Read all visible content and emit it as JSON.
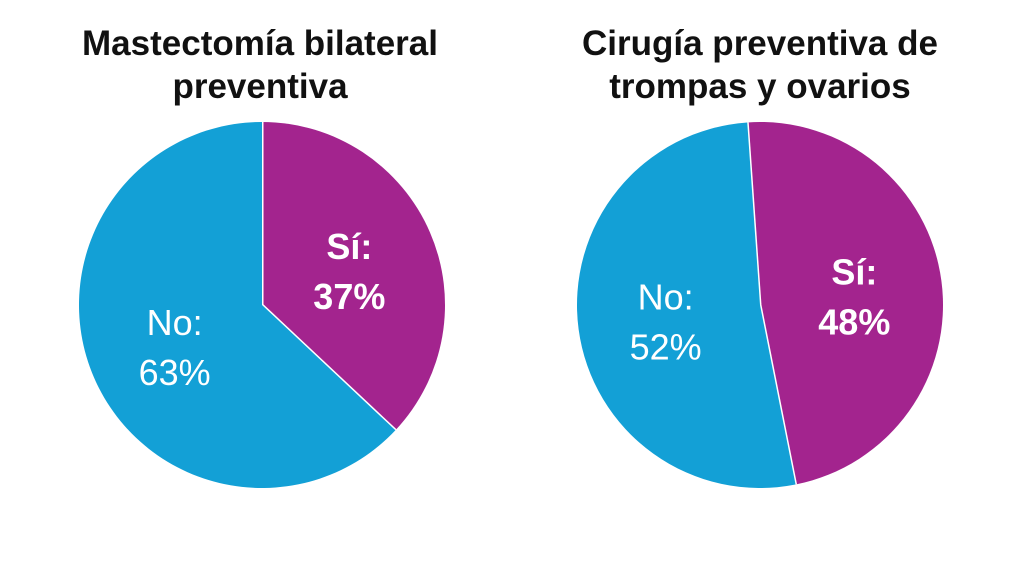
{
  "colors": {
    "no": "#13a0d6",
    "si": "#a3248e",
    "divider": "#ffffff"
  },
  "chart_data": [
    {
      "type": "pie",
      "title_lines": [
        "Mastectomía bilateral",
        "preventiva"
      ],
      "slices": [
        {
          "key": "si",
          "label": "Sí:",
          "value_text": "37%",
          "value": 37,
          "bold": true
        },
        {
          "key": "no",
          "label": "No:",
          "value_text": "63%",
          "value": 63,
          "bold": false
        }
      ]
    },
    {
      "type": "pie",
      "title_lines": [
        "Cirugía preventiva de",
        "trompas y ovarios"
      ],
      "slices": [
        {
          "key": "si",
          "label": "Sí:",
          "value_text": "48%",
          "value": 48,
          "bold": true
        },
        {
          "key": "no",
          "label": "No:",
          "value_text": "52%",
          "value": 52,
          "bold": false
        }
      ]
    }
  ]
}
